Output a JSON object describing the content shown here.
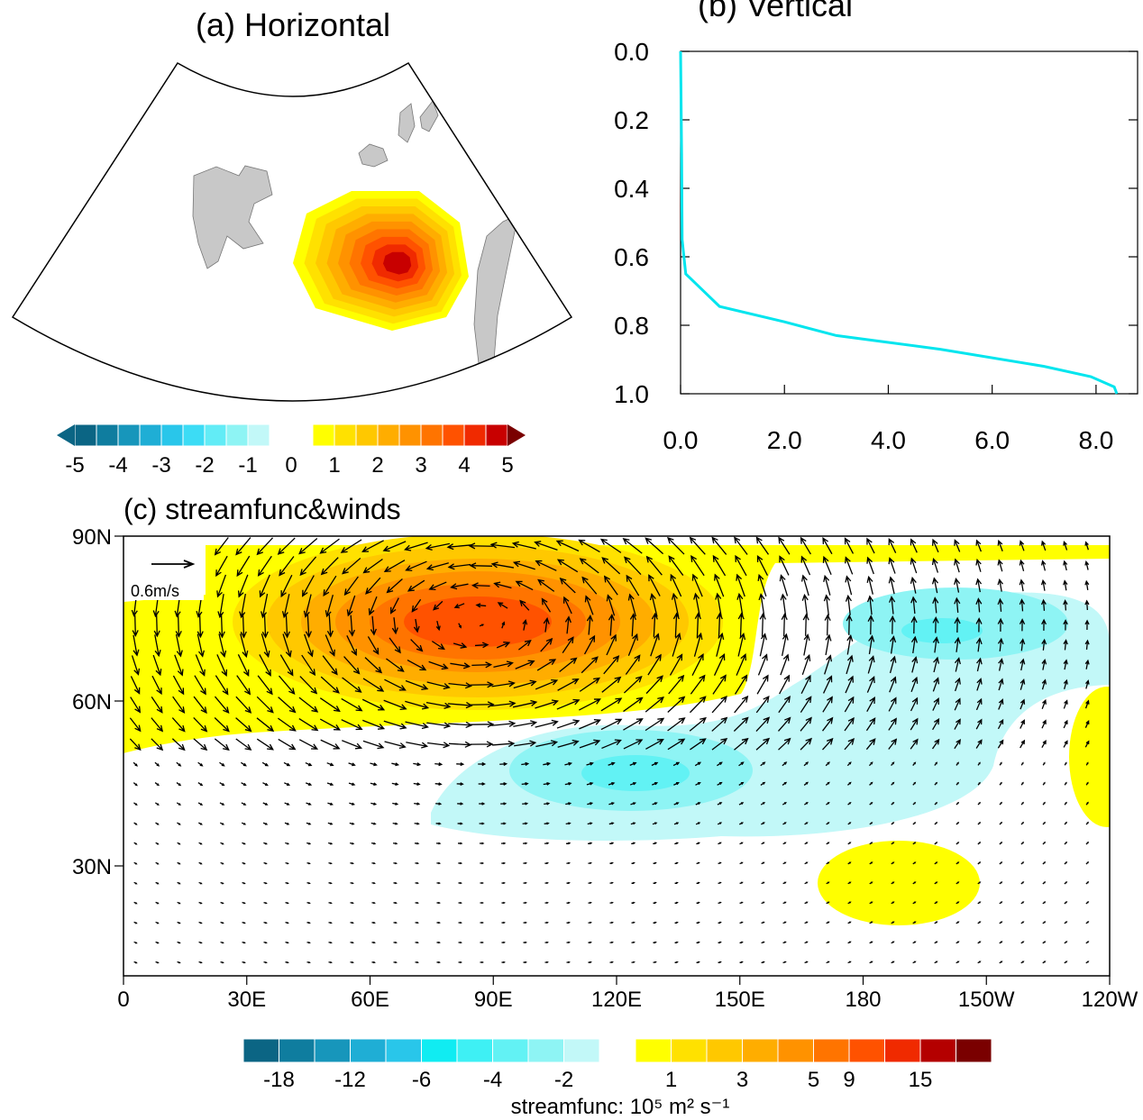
{
  "chart_data": [
    {
      "type": "map",
      "title": "(a) Horizontal",
      "colorbar": {
        "negative_colors": [
          "#0b6584",
          "#0f7d9f",
          "#1796bb",
          "#1faed5",
          "#29c6ea",
          "#3cdcf5",
          "#62ecf6",
          "#8ef4f4",
          "#c2f8f8"
        ],
        "positive_colors": [
          "#ffff00",
          "#ffe100",
          "#ffc800",
          "#ffad00",
          "#ff9200",
          "#ff7400",
          "#ff5200",
          "#f02a00",
          "#c80000",
          "#7a0000"
        ],
        "labels": [
          -5,
          -4,
          -3,
          -2,
          -1,
          0,
          1,
          2,
          3,
          4,
          5
        ]
      }
    },
    {
      "type": "line",
      "title": "(b) Vertical",
      "x": [
        0,
        0.02,
        0.03,
        0.1,
        0.75,
        2.0,
        3.0,
        5.0,
        7.0,
        7.9,
        8.35,
        8.4
      ],
      "series": [
        {
          "color": "#00e5ee",
          "values": [
            0,
            0.3,
            0.55,
            0.65,
            0.745,
            0.79,
            0.83,
            0.87,
            0.92,
            0.95,
            0.98,
            1.0
          ]
        }
      ],
      "xlim": [
        0,
        8.8
      ],
      "ylim": [
        1.0,
        0.0
      ],
      "xticks": [
        {
          "value": 0,
          "label": "0.0"
        },
        {
          "value": 2,
          "label": "2.0"
        },
        {
          "value": 4,
          "label": "4.0"
        },
        {
          "value": 6,
          "label": "6.0"
        },
        {
          "value": 8,
          "label": "8.0"
        }
      ],
      "yticks": [
        {
          "value": 0,
          "label": "0.0"
        },
        {
          "value": 0.2,
          "label": "0.2"
        },
        {
          "value": 0.4,
          "label": "0.4"
        },
        {
          "value": 0.6,
          "label": "0.6"
        },
        {
          "value": 0.8,
          "label": "0.8"
        },
        {
          "value": 1.0,
          "label": "1.0"
        }
      ]
    },
    {
      "type": "map",
      "title": "(c) streamfunc&winds",
      "xlim": [
        0,
        240
      ],
      "ylim": [
        10,
        90
      ],
      "xticks": [
        0,
        {
          "value": 30,
          "label": "30E"
        },
        {
          "value": 60,
          "label": "60E"
        },
        {
          "value": 90,
          "label": "90E"
        },
        {
          "value": 120,
          "label": "120E"
        },
        {
          "value": 150,
          "label": "150E"
        },
        180,
        {
          "value": 210,
          "label": "150W"
        },
        {
          "value": 240,
          "label": "120W"
        }
      ],
      "yticks": [
        {
          "value": 30,
          "label": "30N"
        },
        {
          "value": 60,
          "label": "60N"
        },
        {
          "value": 90,
          "label": "90N"
        }
      ],
      "reference_vector": "0.6m/s",
      "colorbar": {
        "negative_colors": [
          "#0b6584",
          "#0f7d9f",
          "#1796bb",
          "#1faed5",
          "#29c6ea",
          "#10ecf2",
          "#3ef0f4",
          "#62f2f4",
          "#8ef4f4",
          "#c2f8f8"
        ],
        "positive_colors": [
          "#ffff00",
          "#ffe100",
          "#ffc800",
          "#ffad00",
          "#ff9200",
          "#ff7400",
          "#ff5200",
          "#f02a00",
          "#b40000",
          "#7a0000"
        ],
        "labels": [
          -18,
          -12,
          -6,
          -4,
          -2,
          1,
          3,
          5,
          9,
          15
        ],
        "title": "streamfunc: 10⁵ m² s⁻¹"
      }
    }
  ]
}
